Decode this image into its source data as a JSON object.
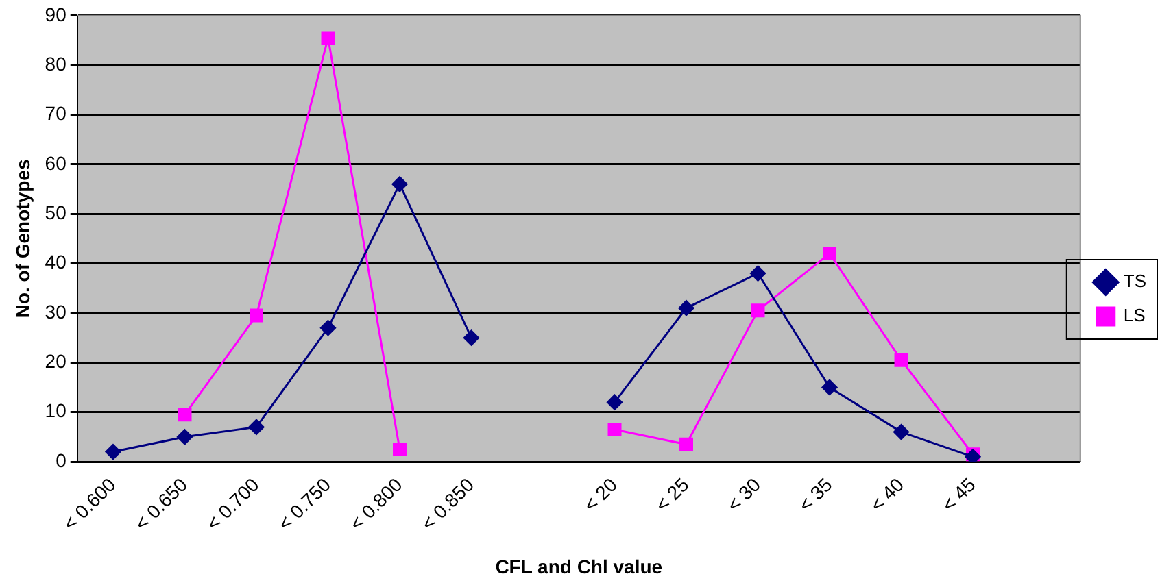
{
  "chart_data": {
    "type": "line",
    "xlabel": "CFL and Chl value",
    "ylabel": "No. of Genotypes",
    "categories": [
      "< 0.600",
      "< 0.650",
      "< 0.700",
      "< 0.750",
      "< 0.800",
      "< 0.850",
      null,
      "< 20",
      "< 25",
      "< 30",
      "< 35",
      "< 40",
      "< 45",
      null
    ],
    "series": [
      {
        "name": "TS",
        "color": "#000080",
        "marker": "diamond",
        "values": [
          2,
          5,
          7,
          27,
          56,
          25,
          null,
          12,
          31,
          38,
          15,
          6,
          1,
          null
        ]
      },
      {
        "name": "LS",
        "color": "#ff00ff",
        "marker": "square",
        "values": [
          null,
          9.5,
          29.5,
          85.5,
          2.5,
          null,
          null,
          6.5,
          3.5,
          30.5,
          42,
          20.5,
          1.5,
          null
        ]
      }
    ],
    "ylim": [
      0,
      90
    ],
    "yticks": [
      0,
      10,
      20,
      30,
      40,
      50,
      60,
      70,
      80,
      90
    ],
    "grid": "y",
    "legend": "right",
    "line_style": "solid"
  }
}
